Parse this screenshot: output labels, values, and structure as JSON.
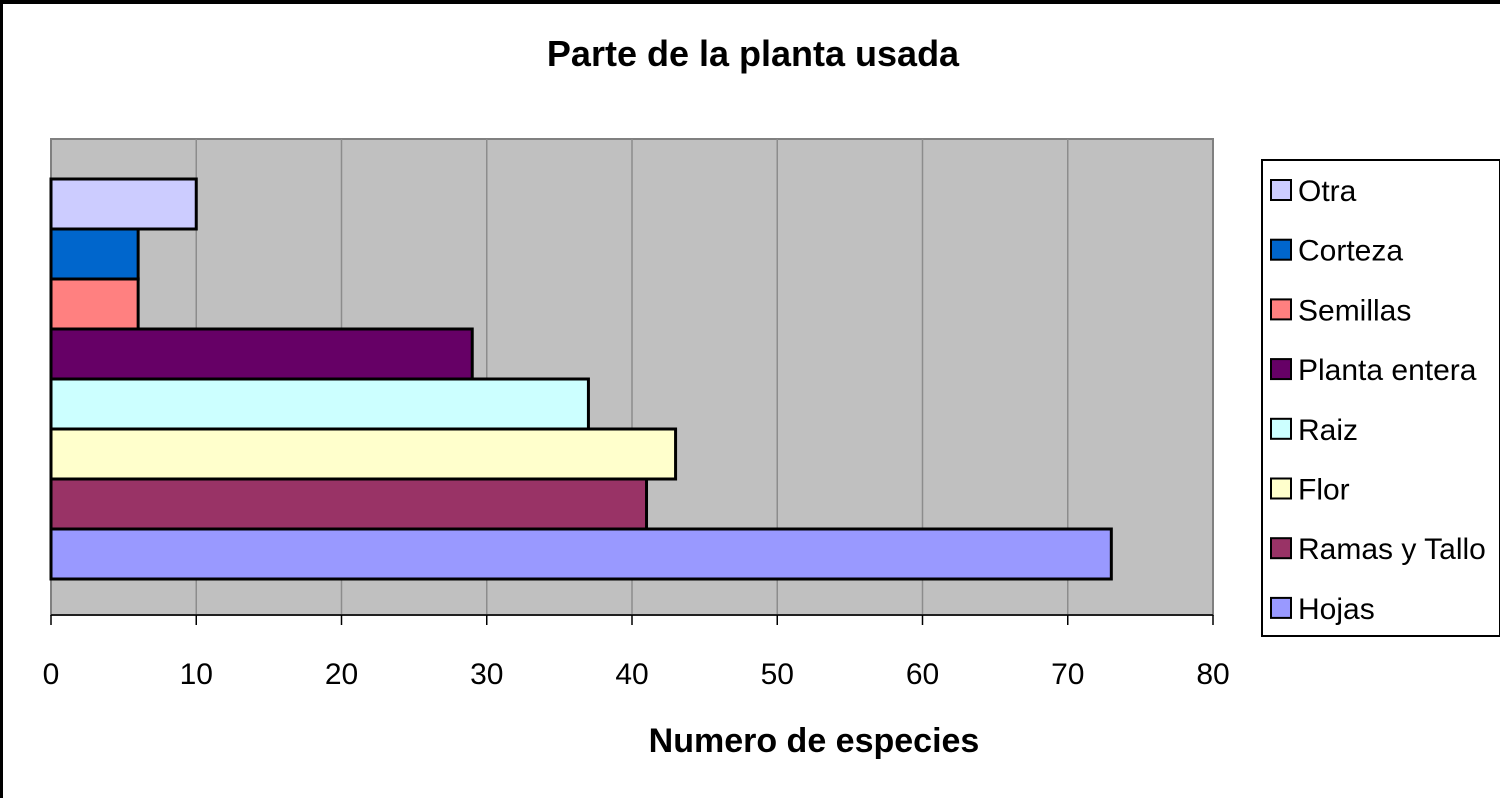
{
  "chart_data": {
    "type": "bar",
    "orientation": "horizontal",
    "title": "Parte de la planta usada",
    "xlabel": "Numero de especies",
    "ylabel": "",
    "xlim": [
      0,
      80
    ],
    "xticks": [
      "0",
      "10",
      "20",
      "30",
      "40",
      "50",
      "60",
      "70",
      "80"
    ],
    "grid": true,
    "legend_position": "right",
    "plot_background": "#c0c0c0",
    "categories": [
      "Otra",
      "Corteza",
      "Semillas",
      "Planta entera",
      "Raiz",
      "Flor",
      "Ramas y Tallo",
      "Hojas"
    ],
    "values": [
      10,
      6,
      6,
      29,
      37,
      43,
      41,
      73
    ],
    "colors": [
      "#ccccff",
      "#0066cc",
      "#ff8080",
      "#660066",
      "#ccffff",
      "#ffffcc",
      "#993366",
      "#9999ff"
    ]
  }
}
